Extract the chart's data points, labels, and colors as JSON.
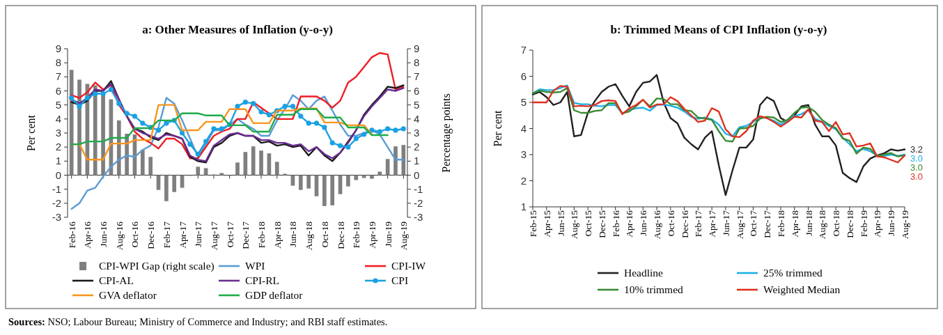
{
  "chart_data": [
    {
      "type": "line",
      "title": "a: Other Measures of Inflation (y-o-y)",
      "ylabel": "Per cent",
      "y2label": "Percentage points",
      "categories": [
        "Feb-16",
        null,
        "Apr-16",
        null,
        "Jun-16",
        null,
        "Aug-16",
        null,
        "Oct-16",
        null,
        "Dec-16",
        null,
        "Feb-17",
        null,
        "Apr-17",
        null,
        "Jun-17",
        null,
        "Aug-17",
        null,
        "Oct-17",
        null,
        "Dec-17",
        null,
        "Feb-18",
        null,
        "Apr-18",
        null,
        "Jun-18",
        null,
        "Aug-18",
        null,
        "Oct-18",
        null,
        "Dec-18",
        null,
        "Feb-19",
        null,
        "Apr-19",
        null,
        "Jun-19",
        null,
        "Aug-19"
      ],
      "ylim": [
        -3,
        9
      ],
      "yticks": [
        -3,
        -2,
        -1,
        0,
        1,
        2,
        3,
        4,
        5,
        6,
        7,
        8,
        9
      ],
      "y2lim": [
        -3,
        9
      ],
      "y2ticks": [
        -3,
        -2,
        -1,
        0,
        1,
        2,
        3,
        4,
        5,
        6,
        7,
        8,
        9
      ],
      "legend": "bottom",
      "annotations": [
        "Sources: NSO; Labour Bureau; Ministry of Commerce and Industry; and RBI staff estimates."
      ],
      "series": [
        {
          "name": "CPI-WPI Gap (right scale)",
          "type": "bar",
          "axis": "y2",
          "color": "#7f7f7f",
          "values": [
            7.5,
            6.8,
            6.5,
            6.4,
            5.9,
            5.4,
            3.9,
            2.95,
            2.9,
            1.8,
            1.3,
            -1.05,
            -1.85,
            -1.2,
            -0.9,
            -0.05,
            0.6,
            0.5,
            0.05,
            0.15,
            -0.05,
            0.9,
            1.65,
            2.05,
            1.75,
            1.55,
            0.95,
            0.1,
            -0.75,
            -1.05,
            -0.95,
            -1.5,
            -2.2,
            -2.15,
            -1.35,
            -0.8,
            -0.35,
            -0.2,
            -0.25,
            0.25,
            1.15,
            2.05,
            2.15
          ]
        },
        {
          "name": "WPI",
          "type": "line",
          "color": "#5b9bd5",
          "values": [
            -2.4,
            -2.0,
            -1.1,
            -0.9,
            -0.1,
            0.6,
            1.1,
            1.4,
            1.3,
            1.8,
            2.1,
            3.4,
            5.5,
            5.1,
            3.9,
            2.6,
            1.3,
            2.2,
            3.2,
            3.2,
            3.6,
            4.0,
            3.6,
            3.3,
            2.8,
            2.8,
            3.9,
            4.7,
            5.7,
            5.3,
            4.7,
            5.3,
            5.6,
            4.6,
            3.6,
            2.8,
            2.8,
            3.0,
            3.2,
            2.9,
            2.0,
            1.1,
            1.1
          ]
        },
        {
          "name": "CPI-IW",
          "type": "line",
          "color": "#ee1c25",
          "values": [
            5.7,
            5.5,
            5.9,
            6.6,
            6.1,
            6.4,
            5.0,
            4.2,
            3.1,
            2.6,
            2.3,
            1.9,
            2.6,
            2.6,
            2.2,
            1.2,
            1.2,
            2.0,
            2.8,
            3.1,
            3.3,
            4.0,
            4.0,
            5.2,
            4.8,
            4.4,
            4.0,
            4.0,
            4.0,
            5.6,
            5.6,
            5.6,
            5.3,
            4.8,
            5.3,
            6.6,
            7.0,
            7.7,
            8.4,
            8.7,
            8.6,
            6.1,
            6.3
          ]
        },
        {
          "name": "CPI-AL",
          "type": "line",
          "color": "#1a1a1a",
          "values": [
            5.2,
            5.0,
            5.3,
            6.0,
            6.0,
            6.7,
            5.4,
            4.2,
            3.3,
            3.1,
            2.7,
            2.5,
            3.0,
            2.8,
            2.6,
            1.3,
            1.0,
            0.9,
            2.0,
            2.3,
            2.8,
            3.0,
            2.8,
            2.8,
            2.3,
            2.4,
            2.1,
            2.2,
            2.0,
            2.1,
            1.4,
            2.0,
            1.4,
            1.0,
            1.6,
            2.4,
            3.2,
            4.3,
            5.0,
            5.6,
            6.3,
            6.2,
            6.4
          ]
        },
        {
          "name": "CPI-RL",
          "type": "line",
          "color": "#6a2c91",
          "values": [
            5.4,
            5.1,
            5.5,
            6.1,
            6.0,
            6.5,
            5.4,
            4.2,
            3.3,
            3.0,
            2.8,
            2.6,
            2.9,
            2.8,
            2.6,
            1.4,
            1.1,
            1.0,
            2.1,
            2.5,
            2.9,
            3.0,
            2.8,
            2.8,
            2.5,
            2.5,
            2.3,
            2.3,
            2.1,
            2.2,
            1.7,
            2.0,
            1.5,
            1.2,
            1.6,
            2.3,
            3.2,
            4.2,
            4.9,
            5.5,
            6.1,
            6.0,
            6.2
          ]
        },
        {
          "name": "CPI",
          "type": "line",
          "marker": "circle",
          "color": "#1ba1e2",
          "values": [
            5.5,
            4.9,
            5.5,
            5.8,
            5.8,
            6.1,
            5.1,
            4.4,
            4.2,
            3.7,
            3.4,
            3.2,
            3.7,
            3.9,
            3.0,
            2.2,
            1.5,
            2.4,
            3.3,
            3.3,
            3.6,
            4.9,
            5.2,
            5.1,
            4.5,
            4.3,
            4.6,
            4.9,
            4.9,
            4.2,
            3.7,
            3.7,
            3.4,
            2.3,
            2.1,
            2.0,
            2.6,
            2.9,
            3.2,
            3.1,
            3.3,
            3.2,
            3.3
          ]
        },
        {
          "name": "GVA deflator",
          "type": "line",
          "color": "#f7941d",
          "values": [
            2.2,
            2.2,
            1.1,
            1.1,
            1.1,
            2.25,
            2.25,
            2.25,
            2.5,
            2.5,
            2.5,
            5.0,
            5.0,
            5.0,
            3.2,
            3.2,
            3.2,
            3.8,
            3.8,
            3.8,
            4.7,
            4.7,
            4.7,
            3.7,
            3.7,
            3.7,
            4.6,
            4.6,
            4.6,
            4.75,
            4.75,
            4.75,
            3.75,
            3.75,
            3.75,
            3.55,
            3.55,
            3.55,
            2.9,
            null,
            null,
            null,
            null
          ]
        },
        {
          "name": "GDP deflator",
          "type": "line",
          "color": "#1fab4b",
          "values": [
            2.2,
            2.2,
            2.4,
            2.4,
            2.4,
            2.65,
            2.65,
            2.65,
            3.35,
            3.35,
            3.35,
            3.9,
            3.9,
            3.9,
            4.4,
            4.4,
            4.4,
            4.25,
            4.25,
            4.25,
            3.55,
            3.55,
            3.55,
            3.1,
            3.1,
            3.1,
            4.3,
            4.3,
            4.3,
            4.7,
            4.7,
            4.7,
            4.1,
            4.1,
            4.1,
            3.4,
            3.4,
            3.4,
            2.85,
            2.85,
            2.85,
            null,
            null
          ]
        }
      ]
    },
    {
      "type": "line",
      "title": "b: Trimmed Means of CPI Inflation (y-o-y)",
      "ylabel": "Per cent",
      "categories": [
        "Feb-15",
        null,
        "Apr-15",
        null,
        "Jun-15",
        null,
        "Aug-15",
        null,
        "Oct-15",
        null,
        "Dec-15",
        null,
        "Feb-16",
        null,
        "Apr-16",
        null,
        "Jun-16",
        null,
        "Aug-16",
        null,
        "Oct-16",
        null,
        "Dec-16",
        null,
        "Feb-17",
        null,
        "Apr-17",
        null,
        "Jun-17",
        null,
        "Aug-17",
        null,
        "Oct-17",
        null,
        "Dec-17",
        null,
        "Feb-18",
        null,
        "Apr-18",
        null,
        "Jun-18",
        null,
        "Aug-18",
        null,
        "Oct-18",
        null,
        "Dec-18",
        null,
        "Feb-19",
        null,
        "Apr-19",
        null,
        "Jun-19",
        null,
        "Aug-19"
      ],
      "ylim": [
        1,
        7
      ],
      "yticks": [
        1,
        2,
        3,
        4,
        5,
        6,
        7
      ],
      "legend": "bottom",
      "series": [
        {
          "name": "Headline",
          "color": "#231f20",
          "values": [
            5.3,
            5.4,
            5.2,
            4.9,
            5.0,
            5.4,
            3.7,
            3.75,
            4.6,
            5.05,
            5.4,
            5.6,
            5.7,
            5.25,
            4.85,
            5.4,
            5.75,
            5.8,
            6.05,
            5.0,
            4.4,
            4.2,
            3.65,
            3.4,
            3.2,
            3.65,
            3.9,
            2.6,
            1.45,
            2.4,
            3.27,
            3.27,
            3.58,
            4.9,
            5.2,
            5.05,
            4.4,
            4.25,
            4.5,
            4.85,
            4.9,
            4.15,
            3.7,
            3.7,
            3.35,
            2.3,
            2.1,
            1.95,
            2.55,
            2.85,
            2.97,
            3.05,
            3.2,
            3.15,
            3.2
          ],
          "value_labels": [
            null,
            null,
            null,
            null,
            null,
            null,
            null,
            null,
            null,
            null,
            null,
            null,
            null,
            null,
            null,
            null,
            null,
            null,
            null,
            null,
            null,
            null,
            null,
            null,
            null,
            null,
            null,
            null,
            null,
            null,
            null,
            null,
            null,
            null,
            null,
            null,
            null,
            null,
            null,
            null,
            null,
            null,
            null,
            null,
            null,
            null,
            null,
            null,
            null,
            null,
            null,
            null,
            null,
            null,
            "3.2"
          ]
        },
        {
          "name": "25% trimmed",
          "color": "#1cb0e6",
          "values": [
            5.35,
            5.5,
            5.47,
            5.47,
            5.55,
            5.65,
            4.98,
            4.93,
            4.93,
            4.87,
            4.85,
            4.9,
            4.9,
            4.58,
            4.72,
            4.77,
            4.8,
            4.68,
            4.9,
            4.92,
            4.87,
            4.8,
            4.65,
            4.45,
            4.37,
            4.42,
            4.35,
            4.15,
            3.8,
            3.7,
            4.05,
            4.1,
            4.25,
            4.45,
            4.4,
            4.3,
            4.15,
            4.3,
            4.47,
            4.55,
            4.7,
            4.37,
            4.25,
            4.1,
            3.97,
            3.65,
            3.4,
            3.13,
            3.22,
            3.13,
            2.95,
            2.95,
            3.0,
            2.95,
            3.0
          ],
          "value_labels": [
            null,
            null,
            null,
            null,
            null,
            null,
            null,
            null,
            null,
            null,
            null,
            null,
            null,
            null,
            null,
            null,
            null,
            null,
            null,
            null,
            null,
            null,
            null,
            null,
            null,
            null,
            null,
            null,
            null,
            null,
            null,
            null,
            null,
            null,
            null,
            null,
            null,
            null,
            null,
            null,
            null,
            null,
            null,
            null,
            null,
            null,
            null,
            null,
            null,
            null,
            null,
            null,
            null,
            null,
            "3.0"
          ]
        },
        {
          "name": "10% trimmed",
          "color": "#3a8a33",
          "values": [
            5.35,
            5.45,
            5.4,
            5.38,
            5.4,
            5.55,
            4.7,
            4.6,
            4.6,
            4.67,
            4.7,
            4.97,
            4.97,
            4.58,
            4.65,
            4.85,
            5.1,
            4.85,
            5.15,
            5.13,
            4.93,
            4.93,
            4.7,
            4.67,
            4.42,
            4.38,
            4.33,
            3.9,
            3.53,
            3.5,
            4.0,
            4.02,
            4.1,
            4.38,
            4.45,
            4.42,
            4.25,
            4.33,
            4.6,
            4.8,
            4.82,
            4.64,
            4.33,
            4.15,
            4.02,
            3.62,
            3.53,
            3.04,
            3.27,
            3.22,
            2.95,
            3.0,
            3.06,
            2.93,
            2.97
          ],
          "value_labels": [
            null,
            null,
            null,
            null,
            null,
            null,
            null,
            null,
            null,
            null,
            null,
            null,
            null,
            null,
            null,
            null,
            null,
            null,
            null,
            null,
            null,
            null,
            null,
            null,
            null,
            null,
            null,
            null,
            null,
            null,
            null,
            null,
            null,
            null,
            null,
            null,
            null,
            null,
            null,
            null,
            null,
            null,
            null,
            null,
            null,
            null,
            null,
            null,
            null,
            null,
            null,
            null,
            null,
            null,
            "3.0"
          ]
        },
        {
          "name": "Weighted Median",
          "color": "#e0301e",
          "values": [
            5.0,
            5.0,
            5.0,
            5.45,
            5.63,
            5.6,
            4.85,
            4.87,
            4.85,
            4.9,
            5.05,
            5.08,
            5.05,
            4.55,
            4.77,
            4.9,
            5.1,
            4.8,
            4.92,
            4.93,
            5.2,
            5.05,
            4.75,
            4.5,
            4.25,
            4.3,
            4.78,
            4.65,
            3.97,
            3.7,
            3.67,
            3.9,
            4.3,
            4.47,
            4.4,
            4.25,
            4.07,
            4.25,
            4.45,
            4.42,
            4.73,
            4.3,
            4.25,
            3.9,
            4.25,
            3.77,
            3.82,
            3.31,
            3.35,
            3.43,
            2.93,
            2.9,
            2.8,
            2.7,
            2.97
          ],
          "value_labels": [
            null,
            null,
            null,
            null,
            null,
            null,
            null,
            null,
            null,
            null,
            null,
            null,
            null,
            null,
            null,
            null,
            null,
            null,
            null,
            null,
            null,
            null,
            null,
            null,
            null,
            null,
            null,
            null,
            null,
            null,
            null,
            null,
            null,
            null,
            null,
            null,
            null,
            null,
            null,
            null,
            null,
            null,
            null,
            null,
            null,
            null,
            null,
            null,
            null,
            null,
            null,
            null,
            null,
            null,
            "3.0"
          ]
        }
      ]
    }
  ]
}
